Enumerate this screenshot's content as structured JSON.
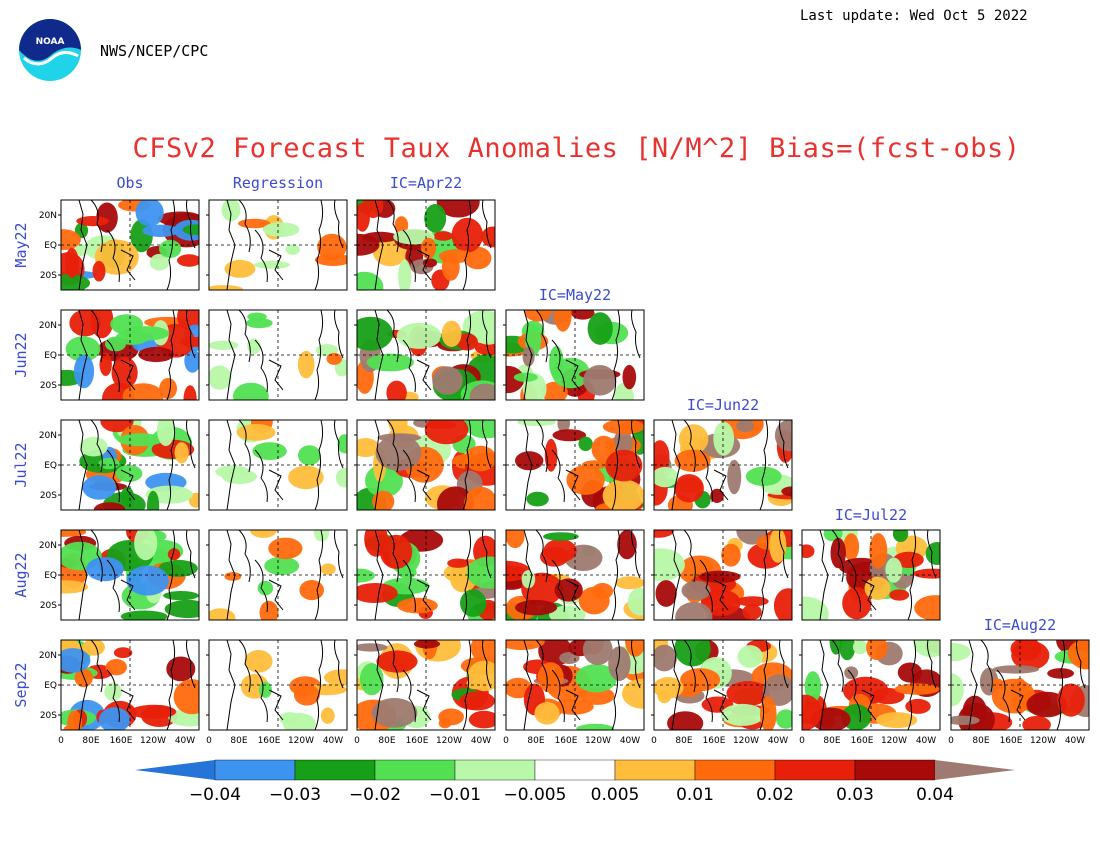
{
  "header": {
    "agency": "NWS/NCEP/CPC",
    "last_update": "Last update: Wed Oct 5 2022",
    "logo_text": "NOAA"
  },
  "chart_data": {
    "type": "heatmap",
    "title": "CFSv2 Forecast Taux Anomalies [N/M^2] Bias=(fcst-obs)",
    "columns": [
      "Obs",
      "Regression",
      "IC=Apr22",
      "IC=May22",
      "IC=Jun22",
      "IC=Jul22",
      "IC=Aug22"
    ],
    "rows": [
      "May22",
      "Jun22",
      "Jul22",
      "Aug22",
      "Sep22"
    ],
    "y_ticks": [
      "20N",
      "EQ",
      "20S"
    ],
    "x_ticks": [
      "0",
      "80E",
      "160E",
      "120W",
      "40W"
    ],
    "colorbar": {
      "labels": [
        "-0.04",
        "-0.03",
        "-0.02",
        "-0.01",
        "-0.005",
        "0.005",
        "0.01",
        "0.02",
        "0.03",
        "0.04"
      ],
      "colors": [
        "#2575d8",
        "#3d93f0",
        "#17a017",
        "#52e052",
        "#b8f8a8",
        "#ffffff",
        "#ffbd3c",
        "#ff6a0d",
        "#e8200a",
        "#a80a0a",
        "#9e7a70"
      ]
    }
  }
}
